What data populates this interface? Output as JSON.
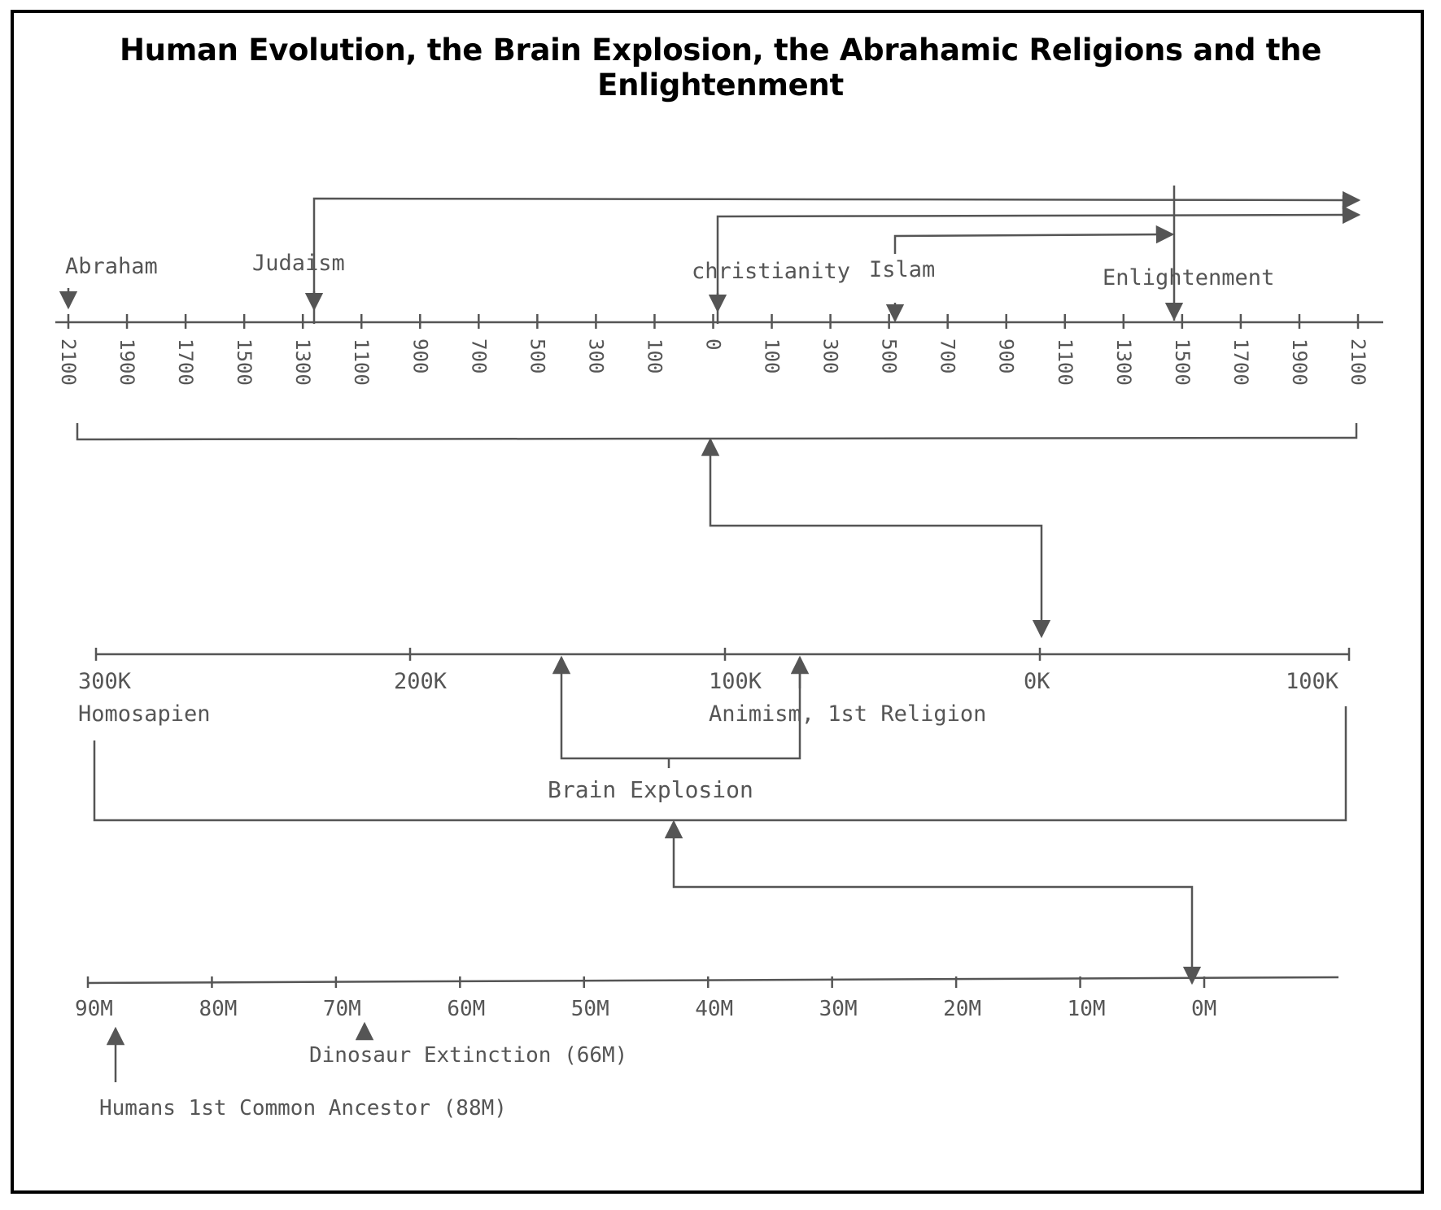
{
  "title": "Human Evolution, the Brain Explosion, the Abrahamic Religions and the Enlightenment",
  "timelines": {
    "bce_ce": {
      "ticks": [
        "2100",
        "1900",
        "1700",
        "1500",
        "1300",
        "1100",
        "900",
        "700",
        "500",
        "300",
        "100",
        "0",
        "100",
        "300",
        "500",
        "700",
        "900",
        "1100",
        "1300",
        "1500",
        "1700",
        "1900",
        "2100"
      ],
      "events": [
        {
          "name": "abraham",
          "label": "Abraham"
        },
        {
          "name": "judaism",
          "label": "Judaism"
        },
        {
          "name": "christianity",
          "label": "christianity"
        },
        {
          "name": "islam",
          "label": "Islam"
        },
        {
          "name": "enlightenment",
          "label": "Enlightenment"
        }
      ]
    },
    "thousands": {
      "ticks": [
        {
          "label": "300K",
          "sub": "Homosapien"
        },
        {
          "label": "200K"
        },
        {
          "label": "100K",
          "sub": "Animism, 1st Religion"
        },
        {
          "label": "0K"
        },
        {
          "label": "100K"
        }
      ],
      "annotation": "Brain Explosion"
    },
    "millions": {
      "ticks": [
        "90M",
        "80M",
        "70M",
        "60M",
        "50M",
        "40M",
        "30M",
        "20M",
        "10M",
        "0M"
      ],
      "events": [
        {
          "name": "dinosaur-extinction",
          "label": "Dinosaur Extinction (66M)"
        },
        {
          "name": "common-ancestor",
          "label": "Humans 1st Common Ancestor (88M)"
        }
      ]
    }
  },
  "colors": {
    "ink": "#555555",
    "border": "#000000"
  }
}
